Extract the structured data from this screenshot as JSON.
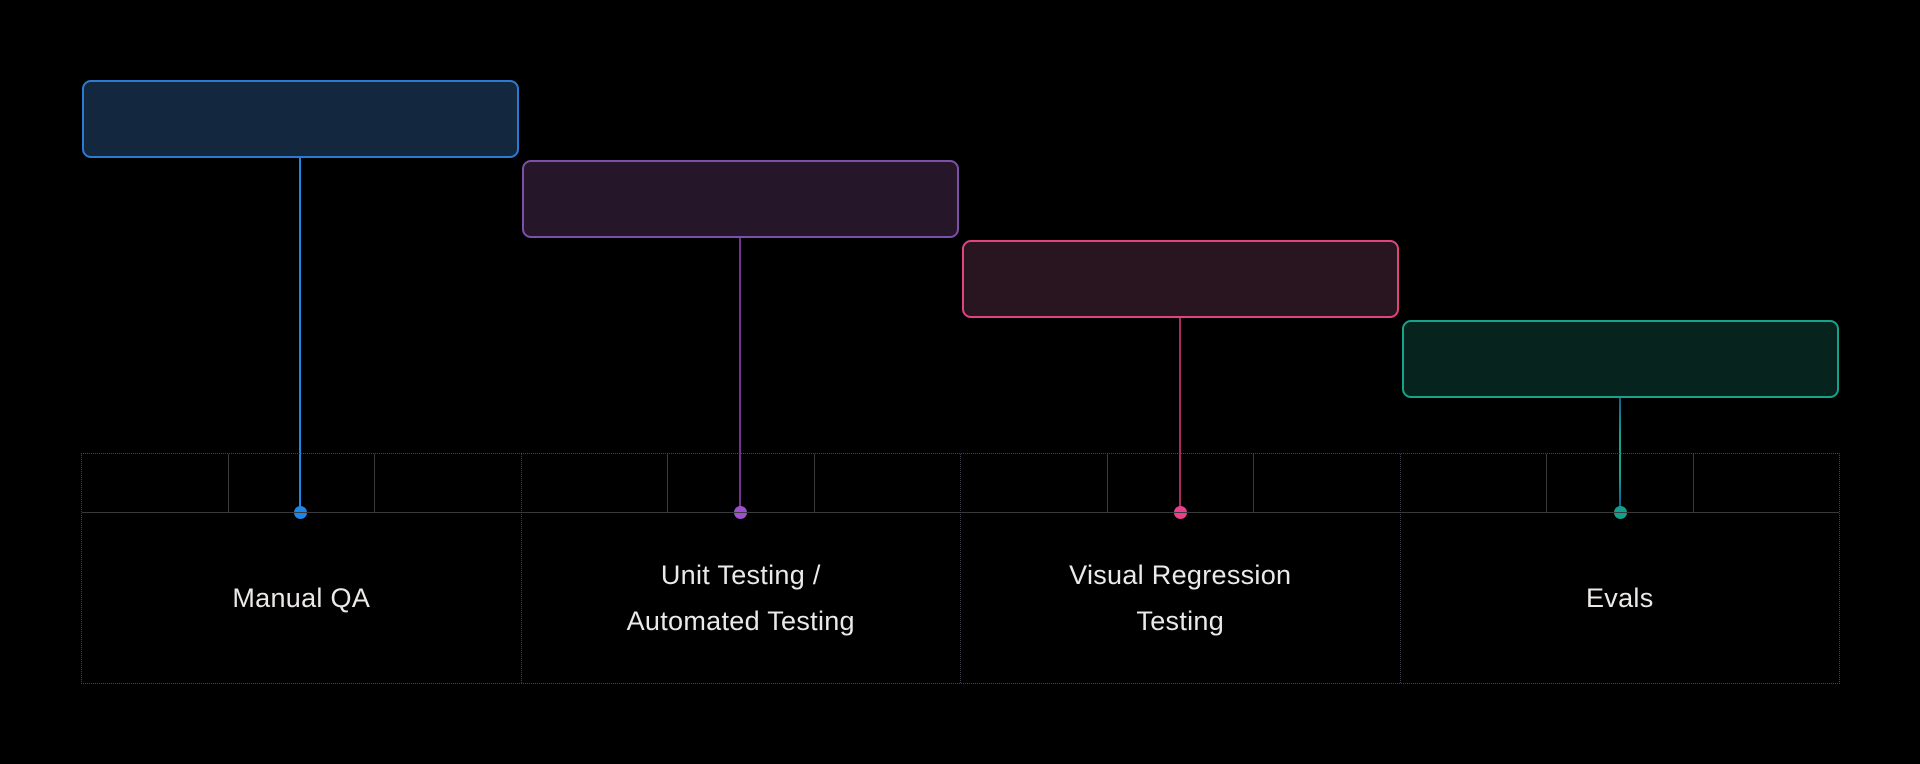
{
  "diagram": {
    "background": "#000000",
    "table": {
      "outer_border_color": "#4a4450",
      "column_separator_color": "#453e4d",
      "grid_line_color": "#3a3a3c",
      "columns": 4,
      "subcells_per_column": 3
    },
    "label_text_color": "#eceae8"
  },
  "stages": [
    {
      "id": "manual-qa",
      "label": "Manual QA",
      "colors": {
        "fill": "#13273f",
        "border": "#2b7cd0",
        "dot": "#1d86e8",
        "line_stops": [
          "#1d86e8"
        ]
      }
    },
    {
      "id": "unit-automated-testing",
      "label": "Unit Testing /\nAutomated Testing",
      "colors": {
        "fill": "#251729",
        "border": "#7e4fa8",
        "dot": "#9c50cc",
        "line_stops": [
          "#70348e"
        ]
      }
    },
    {
      "id": "visual-regression-testing",
      "label": "Visual Regression\nTesting",
      "colors": {
        "fill": "#281520",
        "border": "#e04380",
        "dot": "#ea3f8a",
        "line_stops": [
          "#a82c62"
        ]
      }
    },
    {
      "id": "evals",
      "label": "Evals",
      "colors": {
        "fill": "#06231d",
        "border": "#16a38c",
        "dot": "#12a08c",
        "line_stops": [
          "#15608c",
          "#16a38c",
          "#16a38c",
          "#12519e"
        ]
      }
    }
  ]
}
